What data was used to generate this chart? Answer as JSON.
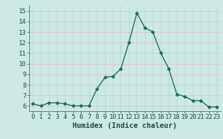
{
  "xlabel": "Humidex (Indice chaleur)",
  "ylabel": "",
  "x": [
    0,
    1,
    2,
    3,
    4,
    5,
    6,
    7,
    8,
    9,
    10,
    11,
    12,
    13,
    14,
    15,
    16,
    17,
    18,
    19,
    20,
    21,
    22,
    23
  ],
  "y": [
    6.2,
    6.0,
    6.3,
    6.3,
    6.2,
    6.0,
    6.0,
    6.0,
    7.6,
    8.7,
    8.8,
    9.5,
    12.0,
    14.8,
    13.4,
    13.0,
    11.0,
    9.5,
    7.1,
    6.9,
    6.5,
    6.5,
    5.9,
    5.9
  ],
  "line_color": "#1a6b5a",
  "marker": "D",
  "marker_size": 2.5,
  "bg_color": "#cce9e5",
  "hgrid_color": "#e8b8b8",
  "vgrid_color": "#aad4d0",
  "ylim": [
    5.5,
    15.5
  ],
  "yticks": [
    6,
    7,
    8,
    9,
    10,
    11,
    12,
    13,
    14,
    15
  ],
  "xlim": [
    -0.5,
    23.5
  ],
  "xticks": [
    0,
    1,
    2,
    3,
    4,
    5,
    6,
    7,
    8,
    9,
    10,
    11,
    12,
    13,
    14,
    15,
    16,
    17,
    18,
    19,
    20,
    21,
    22,
    23
  ],
  "xtick_labels": [
    "0",
    "1",
    "2",
    "3",
    "4",
    "5",
    "6",
    "7",
    "8",
    "9",
    "10",
    "11",
    "12",
    "13",
    "14",
    "15",
    "16",
    "17",
    "18",
    "19",
    "20",
    "21",
    "22",
    "23"
  ],
  "tick_fontsize": 6.5,
  "xlabel_fontsize": 7.5,
  "line_width": 1.0
}
